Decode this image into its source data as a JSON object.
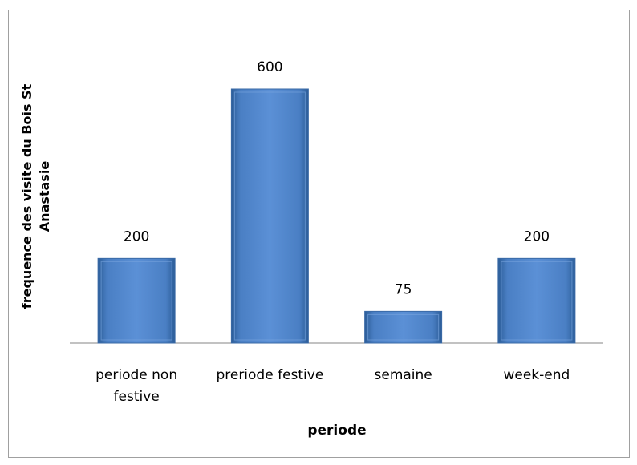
{
  "chart_data": {
    "type": "bar",
    "x_label": "periode",
    "y_label": "frequence des visite du Bois St Anastasie",
    "categories": [
      "periode non festive",
      "preriode festive",
      "semaine",
      "week-end"
    ],
    "values": [
      200,
      600,
      75,
      200
    ],
    "color": "#4f81bd"
  }
}
